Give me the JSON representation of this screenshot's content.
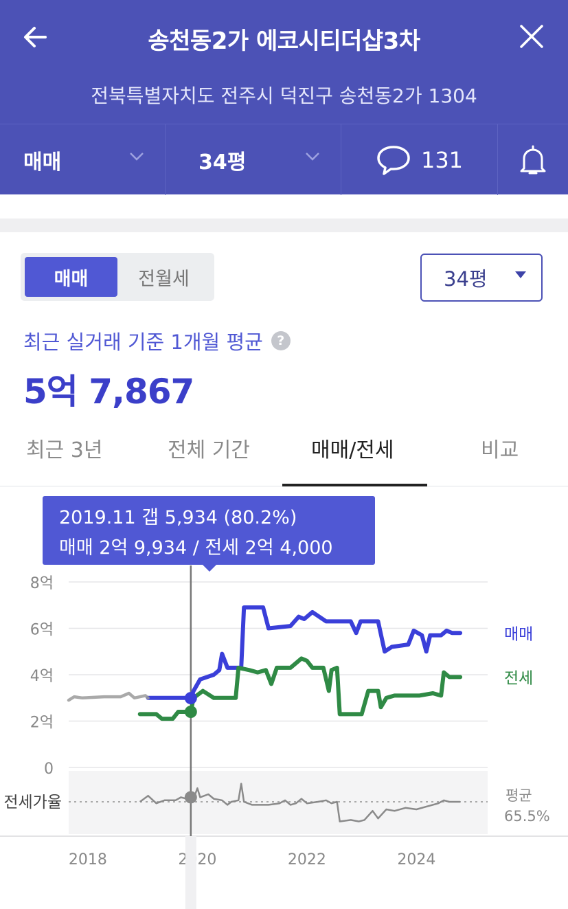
{
  "header": {
    "title": "송천동2가 에코시티더샵3차",
    "address": "전북특별자치도 전주시 덕진구 송천동2가 1304",
    "deal_type": "매매",
    "size": "34평",
    "comment_count": "131",
    "icons": [
      "back-arrow-icon",
      "close-icon",
      "chevron-down-icon",
      "speech-bubble-icon",
      "bell-icon"
    ]
  },
  "segment": {
    "options": [
      "매매",
      "전월세"
    ],
    "selected": "매매"
  },
  "size_select": {
    "value": "34평"
  },
  "summary": {
    "label": "최근 실거래 기준 1개월 평균",
    "help": "?",
    "price": "5억 7,867"
  },
  "tabs": [
    {
      "label": "최근 3년",
      "active": false
    },
    {
      "label": "전체 기간",
      "active": false
    },
    {
      "label": "매매/전세",
      "active": true
    },
    {
      "label": "비교",
      "active": false
    }
  ],
  "tooltip": {
    "line1": "2019.11  갭 5,934 (80.2%)",
    "line2": "매매 2억 9,934 / 전세 2억 4,000"
  },
  "colors": {
    "header_bg": "#4c52b6",
    "accent": "#5058d4",
    "sale": "#3a3fd9",
    "lease": "#2f8a45",
    "ratio": "#8a8a8a"
  },
  "chart_data": {
    "type": "line",
    "ylim": [
      0,
      8
    ],
    "ylabel_unit": "억",
    "y_ticks": [
      {
        "value": 8,
        "label": "8억"
      },
      {
        "value": 6,
        "label": "6억"
      },
      {
        "value": 4,
        "label": "4억"
      },
      {
        "value": 2,
        "label": "2억"
      },
      {
        "value": 0,
        "label": "0"
      }
    ],
    "x_ticks": [
      {
        "value": 2018,
        "label": "2018"
      },
      {
        "value": 2020,
        "label": "2020"
      },
      {
        "value": 2022,
        "label": "2022"
      },
      {
        "value": 2024,
        "label": "2024"
      }
    ],
    "xlim": [
      2017.65,
      2025.3
    ],
    "series": [
      {
        "name": "매매",
        "color": "#3a3fd9",
        "points": [
          [
            2019.1,
            3.0
          ],
          [
            2019.85,
            3.0
          ],
          [
            2019.88,
            3.0
          ],
          [
            2019.93,
            3.3
          ],
          [
            2020.05,
            3.8
          ],
          [
            2020.3,
            4.0
          ],
          [
            2020.4,
            4.2
          ],
          [
            2020.45,
            4.9
          ],
          [
            2020.55,
            4.3
          ],
          [
            2020.8,
            4.3
          ],
          [
            2020.85,
            6.9
          ],
          [
            2021.2,
            6.9
          ],
          [
            2021.3,
            6.0
          ],
          [
            2021.7,
            6.1
          ],
          [
            2021.85,
            6.5
          ],
          [
            2021.95,
            6.4
          ],
          [
            2022.1,
            6.7
          ],
          [
            2022.35,
            6.3
          ],
          [
            2022.8,
            6.3
          ],
          [
            2022.9,
            5.8
          ],
          [
            2022.98,
            6.3
          ],
          [
            2023.3,
            6.3
          ],
          [
            2023.42,
            5.0
          ],
          [
            2023.55,
            5.2
          ],
          [
            2023.85,
            5.3
          ],
          [
            2023.95,
            5.9
          ],
          [
            2024.1,
            5.7
          ],
          [
            2024.18,
            5.0
          ],
          [
            2024.25,
            5.7
          ],
          [
            2024.45,
            5.7
          ],
          [
            2024.55,
            5.9
          ],
          [
            2024.65,
            5.8
          ],
          [
            2024.8,
            5.8
          ]
        ],
        "end_label": "매매"
      },
      {
        "name": "전세",
        "color": "#2f8a45",
        "points": [
          [
            2018.95,
            2.3
          ],
          [
            2019.25,
            2.3
          ],
          [
            2019.35,
            2.1
          ],
          [
            2019.55,
            2.1
          ],
          [
            2019.65,
            2.4
          ],
          [
            2019.88,
            2.4
          ],
          [
            2019.93,
            3.0
          ],
          [
            2020.1,
            3.3
          ],
          [
            2020.3,
            3.0
          ],
          [
            2020.7,
            3.0
          ],
          [
            2020.75,
            4.3
          ],
          [
            2020.95,
            4.2
          ],
          [
            2021.1,
            4.1
          ],
          [
            2021.25,
            4.2
          ],
          [
            2021.35,
            3.6
          ],
          [
            2021.45,
            4.3
          ],
          [
            2021.7,
            4.3
          ],
          [
            2021.9,
            4.7
          ],
          [
            2022.0,
            4.6
          ],
          [
            2022.1,
            4.3
          ],
          [
            2022.3,
            4.3
          ],
          [
            2022.4,
            3.3
          ],
          [
            2022.45,
            4.2
          ],
          [
            2022.55,
            4.3
          ],
          [
            2022.6,
            2.3
          ],
          [
            2023.0,
            2.3
          ],
          [
            2023.12,
            3.3
          ],
          [
            2023.3,
            3.3
          ],
          [
            2023.35,
            2.6
          ],
          [
            2023.45,
            3.0
          ],
          [
            2023.6,
            3.1
          ],
          [
            2024.05,
            3.1
          ],
          [
            2024.3,
            3.2
          ],
          [
            2024.45,
            3.1
          ],
          [
            2024.5,
            4.1
          ],
          [
            2024.6,
            3.9
          ],
          [
            2024.8,
            3.9
          ]
        ],
        "end_label": "전세"
      },
      {
        "name": "과거 매매",
        "color": "#9a9a9a",
        "points": [
          [
            2017.65,
            2.9
          ],
          [
            2017.75,
            3.05
          ],
          [
            2017.9,
            3.0
          ],
          [
            2018.3,
            3.05
          ],
          [
            2018.6,
            3.05
          ],
          [
            2018.75,
            3.2
          ],
          [
            2018.85,
            3.0
          ],
          [
            2019.05,
            3.1
          ],
          [
            2019.1,
            3.0
          ]
        ]
      }
    ],
    "ratio_series": {
      "label": "전세가율",
      "avg_label": "평균",
      "avg_value": "65.5%",
      "color": "#8a8a8a",
      "points": [
        [
          2018.95,
          0.0
        ],
        [
          2019.1,
          0.4
        ],
        [
          2019.25,
          -0.1
        ],
        [
          2019.4,
          0.1
        ],
        [
          2019.6,
          0.1
        ],
        [
          2019.7,
          0.3
        ],
        [
          2019.8,
          0.2
        ],
        [
          2019.88,
          0.3
        ],
        [
          2019.95,
          0.4
        ],
        [
          2020.0,
          0.9
        ],
        [
          2020.05,
          0.3
        ],
        [
          2020.2,
          0.5
        ],
        [
          2020.3,
          0.2
        ],
        [
          2020.45,
          0.1
        ],
        [
          2020.55,
          -0.2
        ],
        [
          2020.62,
          0.0
        ],
        [
          2020.75,
          0.1
        ],
        [
          2020.8,
          1.2
        ],
        [
          2020.85,
          0.0
        ],
        [
          2021.0,
          -0.2
        ],
        [
          2021.3,
          -0.2
        ],
        [
          2021.5,
          -0.1
        ],
        [
          2021.6,
          0.1
        ],
        [
          2021.7,
          -0.2
        ],
        [
          2021.8,
          -0.1
        ],
        [
          2021.9,
          0.2
        ],
        [
          2022.0,
          -0.1
        ],
        [
          2022.2,
          0.0
        ],
        [
          2022.35,
          0.1
        ],
        [
          2022.45,
          -0.1
        ],
        [
          2022.55,
          0.0
        ],
        [
          2022.6,
          -1.3
        ],
        [
          2022.8,
          -1.2
        ],
        [
          2022.95,
          -1.3
        ],
        [
          2023.05,
          -1.2
        ],
        [
          2023.2,
          -0.6
        ],
        [
          2023.3,
          -1.1
        ],
        [
          2023.45,
          -0.5
        ],
        [
          2023.6,
          -0.6
        ],
        [
          2023.8,
          -0.4
        ],
        [
          2024.0,
          -0.5
        ],
        [
          2024.2,
          -0.3
        ],
        [
          2024.4,
          -0.1
        ],
        [
          2024.5,
          0.1
        ],
        [
          2024.6,
          0.0
        ],
        [
          2024.8,
          0.0
        ]
      ]
    },
    "marker": {
      "x": 2019.88,
      "sale": 2.99,
      "lease": 2.4
    }
  }
}
